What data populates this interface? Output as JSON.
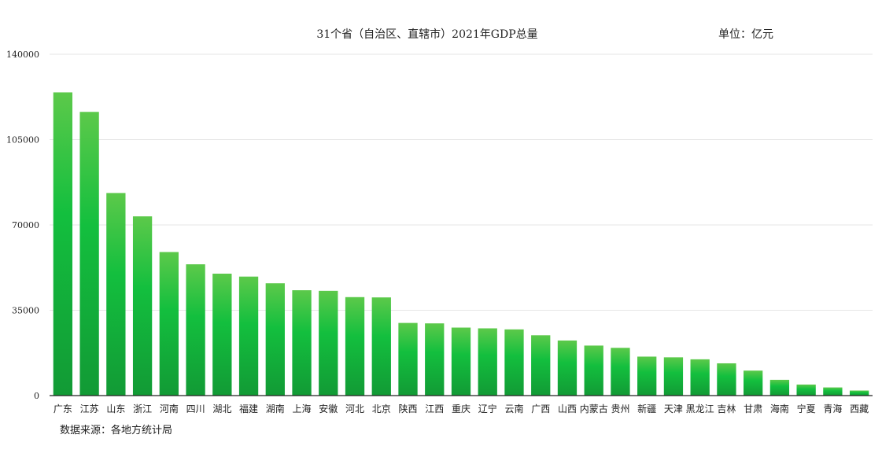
{
  "chart_data": {
    "type": "bar",
    "title": "31个省（自治区、直辖市）2021年GDP总量",
    "unit_label": "单位：亿元",
    "source_label": "数据来源：各地方统计局",
    "xlabel": "",
    "ylabel": "",
    "ylim": [
      0,
      140000
    ],
    "yticks": [
      0,
      35000,
      70000,
      105000,
      140000
    ],
    "grid": true,
    "bar_color_top": "#5cc94a",
    "bar_color_mid": "#13bf3e",
    "bar_color_bottom": "#129a35",
    "categories": [
      "广东",
      "江苏",
      "山东",
      "浙江",
      "河南",
      "四川",
      "湖北",
      "福建",
      "湖南",
      "上海",
      "安徽",
      "河北",
      "北京",
      "陕西",
      "江西",
      "重庆",
      "辽宁",
      "云南",
      "广西",
      "山西",
      "内蒙古",
      "贵州",
      "新疆",
      "天津",
      "黑龙江",
      "吉林",
      "甘肃",
      "海南",
      "宁夏",
      "青海",
      "西藏"
    ],
    "values": [
      124370,
      116364,
      83096,
      73516,
      58887,
      53851,
      50013,
      48810,
      46063,
      43215,
      42959,
      40391,
      40270,
      29801,
      29620,
      27894,
      27584,
      27147,
      24741,
      22590,
      20514,
      19586,
      15984,
      15695,
      14879,
      13236,
      10243,
      6475,
      4522,
      3347,
      2080
    ]
  }
}
